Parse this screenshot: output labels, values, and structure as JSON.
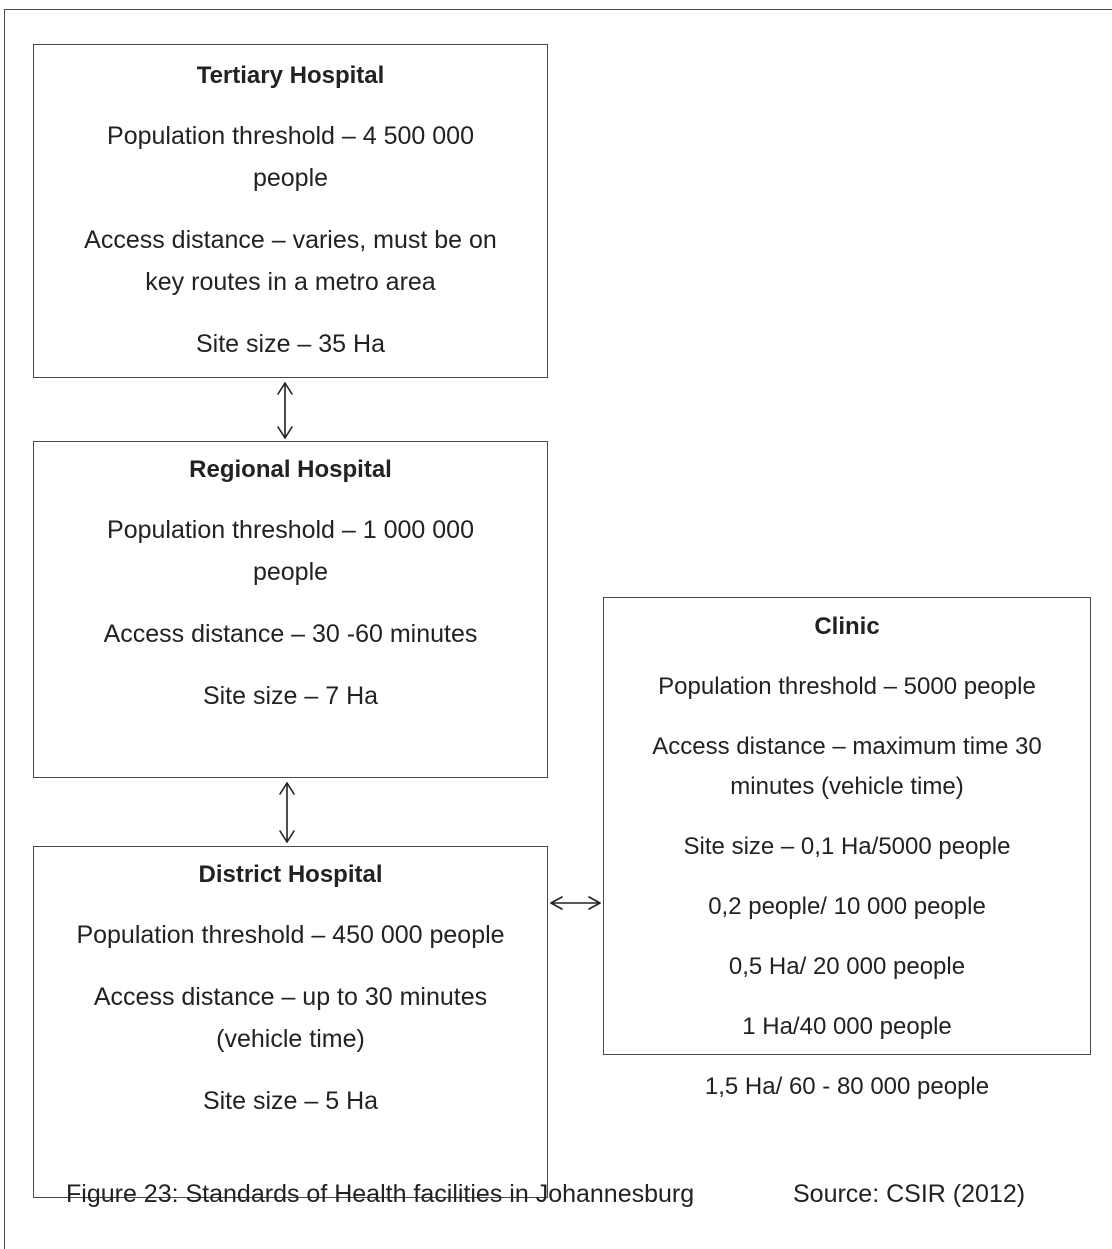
{
  "tertiary": {
    "title": "Tertiary Hospital",
    "population_1": "Population threshold – 4 500 000",
    "population_2": "people",
    "access_1": "Access distance – varies, must be on",
    "access_2": "key routes in a metro area",
    "site": "Site size – 35 Ha"
  },
  "regional": {
    "title": "Regional Hospital",
    "population_1": "Population threshold – 1 000 000",
    "population_2": "people",
    "access": "Access distance – 30 -60 minutes",
    "site": "Site size – 7 Ha"
  },
  "district": {
    "title": "District Hospital",
    "population": "Population threshold – 450 000 people",
    "access_1": "Access distance – up to 30 minutes",
    "access_2": "(vehicle time)",
    "site": "Site size – 5 Ha"
  },
  "clinic": {
    "title": "Clinic",
    "population": "Population threshold – 5000 people",
    "access_1": "Access distance – maximum time 30",
    "access_2": "minutes (vehicle time)",
    "site": "Site size – 0,1 Ha/5000 people",
    "ratios": [
      "0,2 people/ 10 000 people",
      "0,5 Ha/ 20 000 people",
      "1 Ha/40 000 people",
      "1,5 Ha/ 60 - 80 000 people"
    ]
  },
  "caption": {
    "figure": "Figure 23: Standards of Health facilities in Johannesburg",
    "source": "Source: CSIR (2012)"
  }
}
